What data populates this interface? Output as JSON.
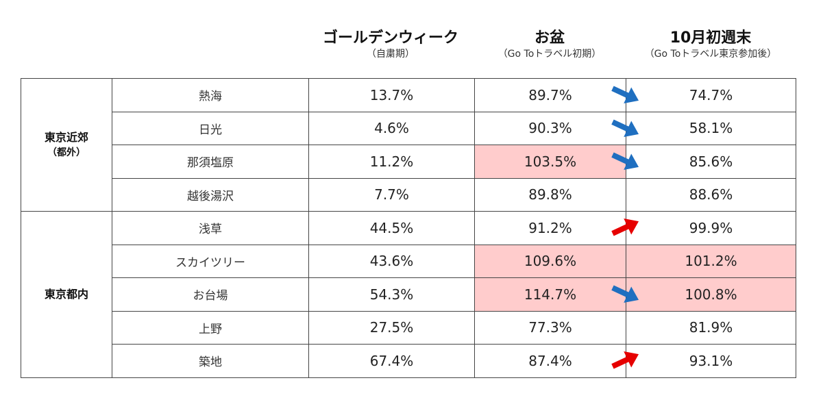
{
  "headers": {
    "gw": {
      "title": "ゴールデンウィーク",
      "sub": "（自粛期）"
    },
    "obon": {
      "title": "お盆",
      "sub": "（Go Toトラベル初期）"
    },
    "oct": {
      "title": "10月初週末",
      "sub": "（Go Toトラベル東京参加後）"
    }
  },
  "groups": [
    {
      "label": "東京近郊",
      "sub": "（都外）"
    },
    {
      "label": "東京都内",
      "sub": ""
    }
  ],
  "rows": [
    {
      "name": "熱海",
      "gw": "13.7%",
      "obon": "89.7%",
      "oct": "74.7%",
      "obon_highlight": false,
      "oct_highlight": false,
      "trend": "down"
    },
    {
      "name": "日光",
      "gw": "4.6%",
      "obon": "90.3%",
      "oct": "58.1%",
      "obon_highlight": false,
      "oct_highlight": false,
      "trend": "down"
    },
    {
      "name": "那須塩原",
      "gw": "11.2%",
      "obon": "103.5%",
      "oct": "85.6%",
      "obon_highlight": true,
      "oct_highlight": false,
      "trend": "down"
    },
    {
      "name": "越後湯沢",
      "gw": "7.7%",
      "obon": "89.8%",
      "oct": "88.6%",
      "obon_highlight": false,
      "oct_highlight": false,
      "trend": "none"
    },
    {
      "name": "浅草",
      "gw": "44.5%",
      "obon": "91.2%",
      "oct": "99.9%",
      "obon_highlight": false,
      "oct_highlight": false,
      "trend": "up"
    },
    {
      "name": "スカイツリー",
      "gw": "43.6%",
      "obon": "109.6%",
      "oct": "101.2%",
      "obon_highlight": true,
      "oct_highlight": true,
      "trend": "none"
    },
    {
      "name": "お台場",
      "gw": "54.3%",
      "obon": "114.7%",
      "oct": "100.8%",
      "obon_highlight": true,
      "oct_highlight": true,
      "trend": "down"
    },
    {
      "name": "上野",
      "gw": "27.5%",
      "obon": "77.3%",
      "oct": "81.9%",
      "obon_highlight": false,
      "oct_highlight": false,
      "trend": "none"
    },
    {
      "name": "築地",
      "gw": "67.4%",
      "obon": "87.4%",
      "oct": "93.1%",
      "obon_highlight": false,
      "oct_highlight": false,
      "trend": "up"
    }
  ],
  "colors": {
    "highlight": "#ffcccc",
    "arrow_down": "#1f6fc0",
    "arrow_up": "#e60000"
  },
  "icons": {
    "down": "arrow-down-right-icon",
    "up": "arrow-up-right-icon"
  }
}
